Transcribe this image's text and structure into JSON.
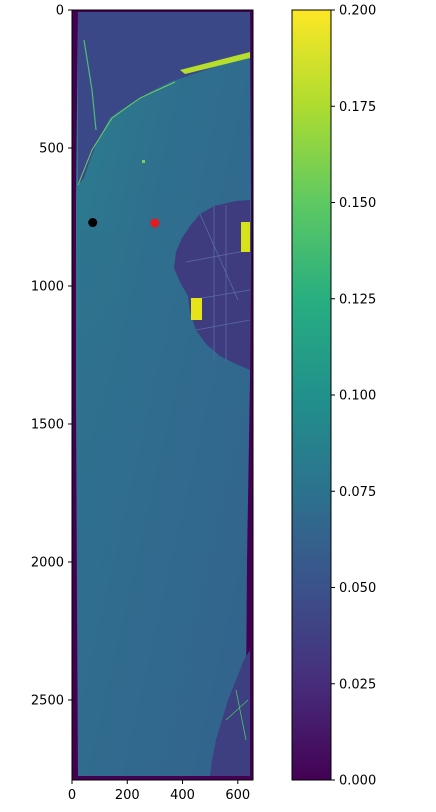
{
  "chart_data": [
    {
      "type": "heatmap",
      "title": "",
      "xlabel": "",
      "ylabel": "",
      "xlim": [
        0,
        655
      ],
      "ylim": [
        2790,
        0
      ],
      "xticks": [
        0,
        200,
        400,
        600
      ],
      "xtick_labels": [
        "0",
        "200",
        "400",
        "600"
      ],
      "yticks": [
        0,
        500,
        1000,
        1500,
        2000,
        2500
      ],
      "ytick_labels": [
        "0",
        "500",
        "1000",
        "1500",
        "2000",
        "2500"
      ],
      "image": {
        "description_colormap": "viridis",
        "value_range": [
          0.0,
          0.2
        ]
      },
      "points": [
        {
          "x": 75,
          "y": 770,
          "color": "#000000"
        },
        {
          "x": 300,
          "y": 772,
          "color": "#e41a1c"
        }
      ],
      "grid": false
    },
    {
      "type": "colorbar",
      "colormap": "viridis",
      "vmin": 0.0,
      "vmax": 0.2,
      "ticks": [
        0.0,
        0.025,
        0.05,
        0.075,
        0.1,
        0.125,
        0.15,
        0.175,
        0.2
      ],
      "tick_labels": [
        "0.000",
        "0.025",
        "0.050",
        "0.075",
        "0.100",
        "0.125",
        "0.150",
        "0.175",
        "0.200"
      ]
    }
  ],
  "colors": {
    "viridis_0": "#440154",
    "viridis_25": "#3b528b",
    "viridis_50": "#21918c",
    "viridis_75": "#5ec962",
    "viridis_100": "#fde725",
    "water": "#2f6b8e",
    "water_light": "#2b7a8c",
    "land": "#3a3a7a"
  }
}
